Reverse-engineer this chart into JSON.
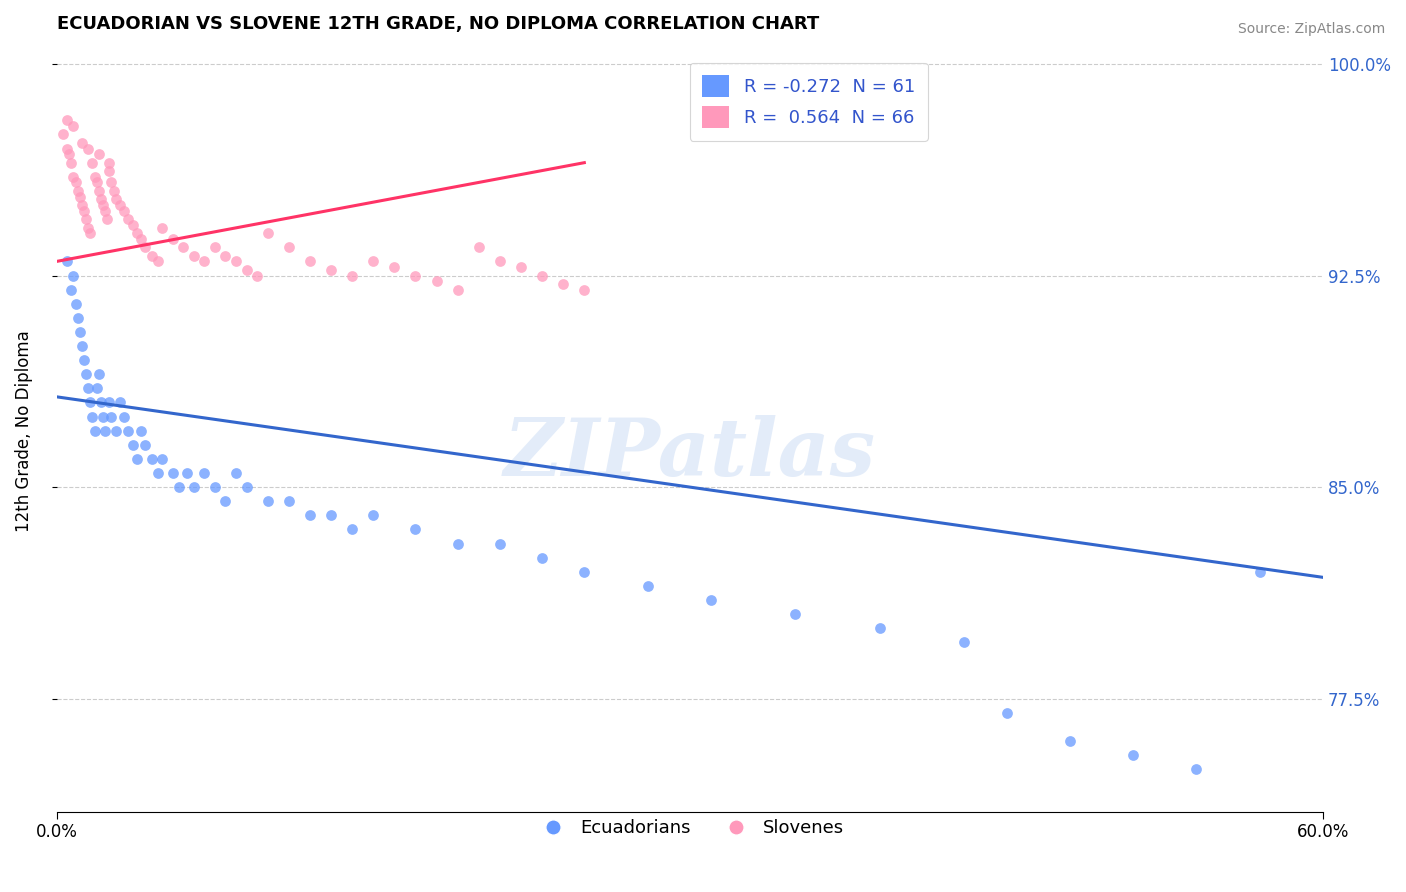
{
  "title": "ECUADORIAN VS SLOVENE 12TH GRADE, NO DIPLOMA CORRELATION CHART",
  "source_text": "Source: ZipAtlas.com",
  "ylabel": "12th Grade, No Diploma",
  "xlim": [
    0.0,
    0.6
  ],
  "ylim": [
    0.735,
    1.005
  ],
  "ytick_positions": [
    0.775,
    0.85,
    0.925,
    1.0
  ],
  "ytick_labels": [
    "77.5%",
    "85.0%",
    "92.5%",
    "100.0%"
  ],
  "ecuadorian_color": "#6699ff",
  "slovene_color": "#ff99bb",
  "trend_ecuadorian_color": "#3366cc",
  "trend_slovene_color": "#ff3366",
  "watermark": "ZIPatlas",
  "legend_R_ecuadorian": "-0.272",
  "legend_N_ecuadorian": "61",
  "legend_R_slovene": "0.564",
  "legend_N_slovene": "66",
  "ec_x": [
    0.005,
    0.007,
    0.008,
    0.009,
    0.01,
    0.011,
    0.012,
    0.013,
    0.014,
    0.015,
    0.016,
    0.017,
    0.018,
    0.019,
    0.02,
    0.021,
    0.022,
    0.023,
    0.025,
    0.026,
    0.028,
    0.03,
    0.032,
    0.034,
    0.036,
    0.038,
    0.04,
    0.042,
    0.045,
    0.048,
    0.05,
    0.055,
    0.058,
    0.062,
    0.065,
    0.07,
    0.075,
    0.08,
    0.085,
    0.09,
    0.1,
    0.11,
    0.12,
    0.13,
    0.14,
    0.15,
    0.17,
    0.19,
    0.21,
    0.23,
    0.25,
    0.28,
    0.31,
    0.35,
    0.39,
    0.43,
    0.45,
    0.48,
    0.51,
    0.54,
    0.57
  ],
  "ec_y": [
    0.93,
    0.92,
    0.925,
    0.915,
    0.91,
    0.905,
    0.9,
    0.895,
    0.89,
    0.885,
    0.88,
    0.875,
    0.87,
    0.885,
    0.89,
    0.88,
    0.875,
    0.87,
    0.88,
    0.875,
    0.87,
    0.88,
    0.875,
    0.87,
    0.865,
    0.86,
    0.87,
    0.865,
    0.86,
    0.855,
    0.86,
    0.855,
    0.85,
    0.855,
    0.85,
    0.855,
    0.85,
    0.845,
    0.855,
    0.85,
    0.845,
    0.845,
    0.84,
    0.84,
    0.835,
    0.84,
    0.835,
    0.83,
    0.83,
    0.825,
    0.82,
    0.815,
    0.81,
    0.805,
    0.8,
    0.795,
    0.77,
    0.76,
    0.755,
    0.75,
    0.82
  ],
  "sl_x": [
    0.003,
    0.005,
    0.006,
    0.007,
    0.008,
    0.009,
    0.01,
    0.011,
    0.012,
    0.013,
    0.014,
    0.015,
    0.016,
    0.017,
    0.018,
    0.019,
    0.02,
    0.021,
    0.022,
    0.023,
    0.024,
    0.025,
    0.026,
    0.027,
    0.028,
    0.03,
    0.032,
    0.034,
    0.036,
    0.038,
    0.04,
    0.042,
    0.045,
    0.048,
    0.05,
    0.055,
    0.06,
    0.065,
    0.07,
    0.075,
    0.08,
    0.085,
    0.09,
    0.095,
    0.1,
    0.11,
    0.12,
    0.13,
    0.14,
    0.15,
    0.16,
    0.17,
    0.18,
    0.19,
    0.2,
    0.21,
    0.22,
    0.23,
    0.24,
    0.25,
    0.005,
    0.008,
    0.012,
    0.015,
    0.02,
    0.025
  ],
  "sl_y": [
    0.975,
    0.97,
    0.968,
    0.965,
    0.96,
    0.958,
    0.955,
    0.953,
    0.95,
    0.948,
    0.945,
    0.942,
    0.94,
    0.965,
    0.96,
    0.958,
    0.955,
    0.952,
    0.95,
    0.948,
    0.945,
    0.962,
    0.958,
    0.955,
    0.952,
    0.95,
    0.948,
    0.945,
    0.943,
    0.94,
    0.938,
    0.935,
    0.932,
    0.93,
    0.942,
    0.938,
    0.935,
    0.932,
    0.93,
    0.935,
    0.932,
    0.93,
    0.927,
    0.925,
    0.94,
    0.935,
    0.93,
    0.927,
    0.925,
    0.93,
    0.928,
    0.925,
    0.923,
    0.92,
    0.935,
    0.93,
    0.928,
    0.925,
    0.922,
    0.92,
    0.98,
    0.978,
    0.972,
    0.97,
    0.968,
    0.965
  ]
}
